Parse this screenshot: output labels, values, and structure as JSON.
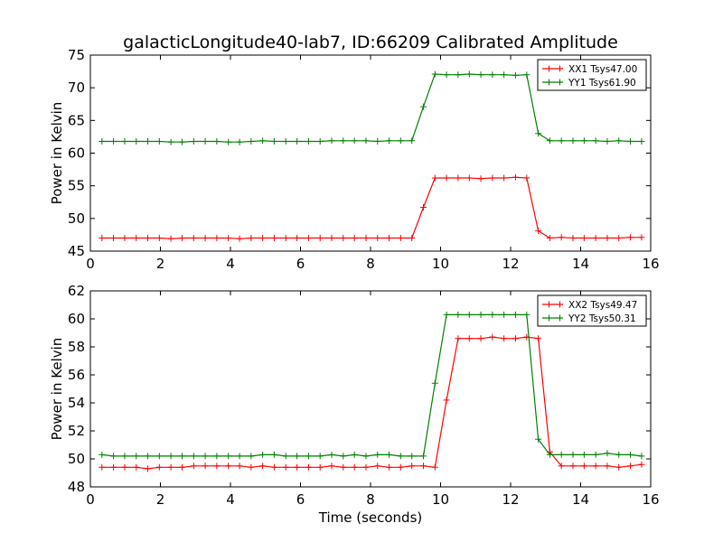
{
  "title": "galacticLongitude40-lab7, ID:66209 Calibrated Amplitude",
  "xlabel": "Time (seconds)",
  "chart_data": [
    {
      "type": "line",
      "title": "galacticLongitude40-lab7, ID:66209 Calibrated Amplitude",
      "xlabel": "",
      "ylabel": "Power in Kelvin",
      "xlim": [
        0,
        16
      ],
      "ylim": [
        45,
        75
      ],
      "xticks": [
        "0",
        "2",
        "4",
        "6",
        "8",
        "10",
        "12",
        "14",
        "16"
      ],
      "yticks": [
        "45",
        "50",
        "55",
        "60",
        "65",
        "70",
        "75"
      ],
      "grid": false,
      "legend_position": "top-right",
      "series": [
        {
          "name": "XX1 Tsys47.00",
          "color": "#ff0000",
          "marker": "plus",
          "x": [
            0.33,
            0.66,
            0.98,
            1.31,
            1.64,
            1.97,
            2.3,
            2.62,
            2.95,
            3.28,
            3.61,
            3.94,
            4.26,
            4.59,
            4.92,
            5.25,
            5.58,
            5.9,
            6.23,
            6.56,
            6.89,
            7.22,
            7.54,
            7.87,
            8.2,
            8.53,
            8.86,
            9.18,
            9.51,
            9.84,
            10.17,
            10.5,
            10.82,
            11.15,
            11.48,
            11.81,
            12.14,
            12.46,
            12.79,
            13.12,
            13.45,
            13.78,
            14.1,
            14.43,
            14.76,
            15.09,
            15.42,
            15.74
          ],
          "y": [
            47.0,
            47.0,
            47.0,
            47.0,
            47.0,
            47.0,
            46.9,
            47.0,
            47.0,
            47.0,
            47.0,
            47.0,
            46.9,
            47.0,
            47.0,
            47.0,
            47.0,
            47.0,
            47.0,
            47.0,
            47.0,
            47.0,
            47.0,
            47.0,
            47.0,
            47.0,
            47.0,
            47.0,
            51.7,
            56.2,
            56.2,
            56.2,
            56.2,
            56.1,
            56.2,
            56.2,
            56.3,
            56.2,
            48.1,
            47.0,
            47.1,
            47.0,
            47.0,
            47.0,
            47.0,
            47.0,
            47.1,
            47.1
          ]
        },
        {
          "name": "YY1 Tsys61.90",
          "color": "#008000",
          "marker": "plus",
          "x": [
            0.33,
            0.66,
            0.98,
            1.31,
            1.64,
            1.97,
            2.3,
            2.62,
            2.95,
            3.28,
            3.61,
            3.94,
            4.26,
            4.59,
            4.92,
            5.25,
            5.58,
            5.9,
            6.23,
            6.56,
            6.89,
            7.22,
            7.54,
            7.87,
            8.2,
            8.53,
            8.86,
            9.18,
            9.51,
            9.84,
            10.17,
            10.5,
            10.82,
            11.15,
            11.48,
            11.81,
            12.14,
            12.46,
            12.79,
            13.12,
            13.45,
            13.78,
            14.1,
            14.43,
            14.76,
            15.09,
            15.42,
            15.74
          ],
          "y": [
            61.8,
            61.8,
            61.8,
            61.8,
            61.8,
            61.8,
            61.7,
            61.7,
            61.8,
            61.8,
            61.8,
            61.7,
            61.7,
            61.8,
            61.9,
            61.8,
            61.8,
            61.8,
            61.8,
            61.8,
            61.9,
            61.9,
            61.9,
            61.9,
            61.8,
            61.9,
            61.9,
            61.9,
            67.1,
            72.1,
            72.0,
            72.0,
            72.1,
            72.0,
            72.0,
            72.0,
            71.9,
            72.0,
            63.0,
            61.9,
            61.9,
            61.9,
            61.9,
            61.9,
            61.8,
            61.9,
            61.8,
            61.8
          ]
        }
      ]
    },
    {
      "type": "line",
      "title": "",
      "xlabel": "Time (seconds)",
      "ylabel": "Power in Kelvin",
      "xlim": [
        0,
        16
      ],
      "ylim": [
        48,
        62
      ],
      "xticks": [
        "0",
        "2",
        "4",
        "6",
        "8",
        "10",
        "12",
        "14",
        "16"
      ],
      "yticks": [
        "48",
        "50",
        "52",
        "54",
        "56",
        "58",
        "60",
        "62"
      ],
      "grid": false,
      "legend_position": "top-right",
      "series": [
        {
          "name": "XX2 Tsys49.47",
          "color": "#ff0000",
          "marker": "plus",
          "x": [
            0.33,
            0.66,
            0.98,
            1.31,
            1.64,
            1.97,
            2.3,
            2.62,
            2.95,
            3.28,
            3.61,
            3.94,
            4.26,
            4.59,
            4.92,
            5.25,
            5.58,
            5.9,
            6.23,
            6.56,
            6.89,
            7.22,
            7.54,
            7.87,
            8.2,
            8.53,
            8.86,
            9.18,
            9.51,
            9.84,
            10.17,
            10.5,
            10.82,
            11.15,
            11.48,
            11.81,
            12.14,
            12.46,
            12.79,
            13.12,
            13.45,
            13.78,
            14.1,
            14.43,
            14.76,
            15.09,
            15.42,
            15.74
          ],
          "y": [
            49.4,
            49.4,
            49.4,
            49.4,
            49.3,
            49.4,
            49.4,
            49.4,
            49.5,
            49.5,
            49.5,
            49.5,
            49.5,
            49.4,
            49.5,
            49.4,
            49.4,
            49.4,
            49.4,
            49.4,
            49.5,
            49.4,
            49.4,
            49.4,
            49.5,
            49.4,
            49.4,
            49.5,
            49.5,
            49.4,
            54.2,
            58.6,
            58.6,
            58.6,
            58.7,
            58.6,
            58.6,
            58.7,
            58.6,
            50.5,
            49.5,
            49.5,
            49.5,
            49.5,
            49.5,
            49.4,
            49.5,
            49.6
          ]
        },
        {
          "name": "YY2 Tsys50.31",
          "color": "#008000",
          "marker": "plus",
          "x": [
            0.33,
            0.66,
            0.98,
            1.31,
            1.64,
            1.97,
            2.3,
            2.62,
            2.95,
            3.28,
            3.61,
            3.94,
            4.26,
            4.59,
            4.92,
            5.25,
            5.58,
            5.9,
            6.23,
            6.56,
            6.89,
            7.22,
            7.54,
            7.87,
            8.2,
            8.53,
            8.86,
            9.18,
            9.51,
            9.84,
            10.17,
            10.5,
            10.82,
            11.15,
            11.48,
            11.81,
            12.14,
            12.46,
            12.79,
            13.12,
            13.45,
            13.78,
            14.1,
            14.43,
            14.76,
            15.09,
            15.42,
            15.74
          ],
          "y": [
            50.3,
            50.2,
            50.2,
            50.2,
            50.2,
            50.2,
            50.2,
            50.2,
            50.2,
            50.2,
            50.2,
            50.2,
            50.2,
            50.2,
            50.3,
            50.3,
            50.2,
            50.2,
            50.2,
            50.2,
            50.3,
            50.2,
            50.3,
            50.2,
            50.3,
            50.3,
            50.2,
            50.2,
            50.2,
            55.4,
            60.3,
            60.3,
            60.3,
            60.3,
            60.3,
            60.3,
            60.3,
            60.3,
            51.4,
            50.3,
            50.3,
            50.3,
            50.3,
            50.3,
            50.4,
            50.3,
            50.3,
            50.2
          ]
        }
      ]
    }
  ]
}
